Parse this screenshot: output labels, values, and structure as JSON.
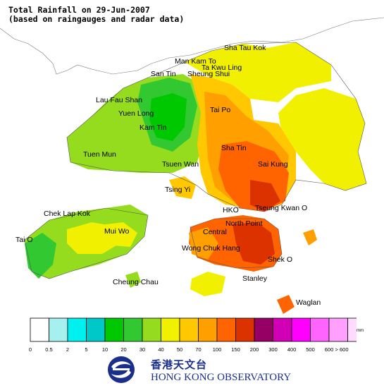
{
  "title": {
    "line1": "Total Rainfall on 29-Jun-2007",
    "line2": "(based on raingauges and radar data)"
  },
  "places": {
    "sha_tau_kok": "Sha Tau Kok",
    "man_kam_to": "Man Kam To",
    "ta_kwu_ling": "Ta Kwu Ling",
    "san_tin": "San Tin",
    "sheung_shui": "Sheung Shui",
    "lau_fau_shan": "Lau Fau Shan",
    "yuen_long": "Yuen Long",
    "kam_tin": "Kam Tin",
    "tai_po": "Tai Po",
    "tuen_mun": "Tuen Mun",
    "sha_tin": "Sha Tin",
    "tsuen_wan": "Tsuen Wan",
    "sai_kung": "Sai Kung",
    "tsing_yi": "Tsing Yi",
    "hko": "HKO",
    "tseung_kwan_o": "Tseung Kwan O",
    "chek_lap_kok": "Chek Lap Kok",
    "north_point": "North Point",
    "central": "Central",
    "mui_wo": "Mui Wo",
    "tai_o": "Tai O",
    "wong_chuk_hang": "Wong Chuk Hang",
    "shek_o": "Shek O",
    "cheung_chau": "Cheung Chau",
    "stanley": "Stanley",
    "waglan": "Waglan"
  },
  "legend": {
    "unit": "mm",
    "thresholds": [
      "0",
      "0.5",
      "2",
      "5",
      "10",
      "20",
      "30",
      "40",
      "50",
      "70",
      "100",
      "150",
      "200",
      "300",
      "400",
      "500",
      "600",
      "> 600"
    ],
    "colors": [
      "#ffffff",
      "#a6f0f0",
      "#00f0f0",
      "#00c8c8",
      "#00c800",
      "#32c832",
      "#96dc1e",
      "#f0f000",
      "#ffc800",
      "#ffa000",
      "#ff6400",
      "#dc3200",
      "#960064",
      "#d200b4",
      "#ff00ff",
      "#ff64ff",
      "#ffa0ff",
      "#ffdcff"
    ]
  },
  "logo": {
    "chinese": "香港天文台",
    "english": "HONG KONG OBSERVATORY"
  }
}
